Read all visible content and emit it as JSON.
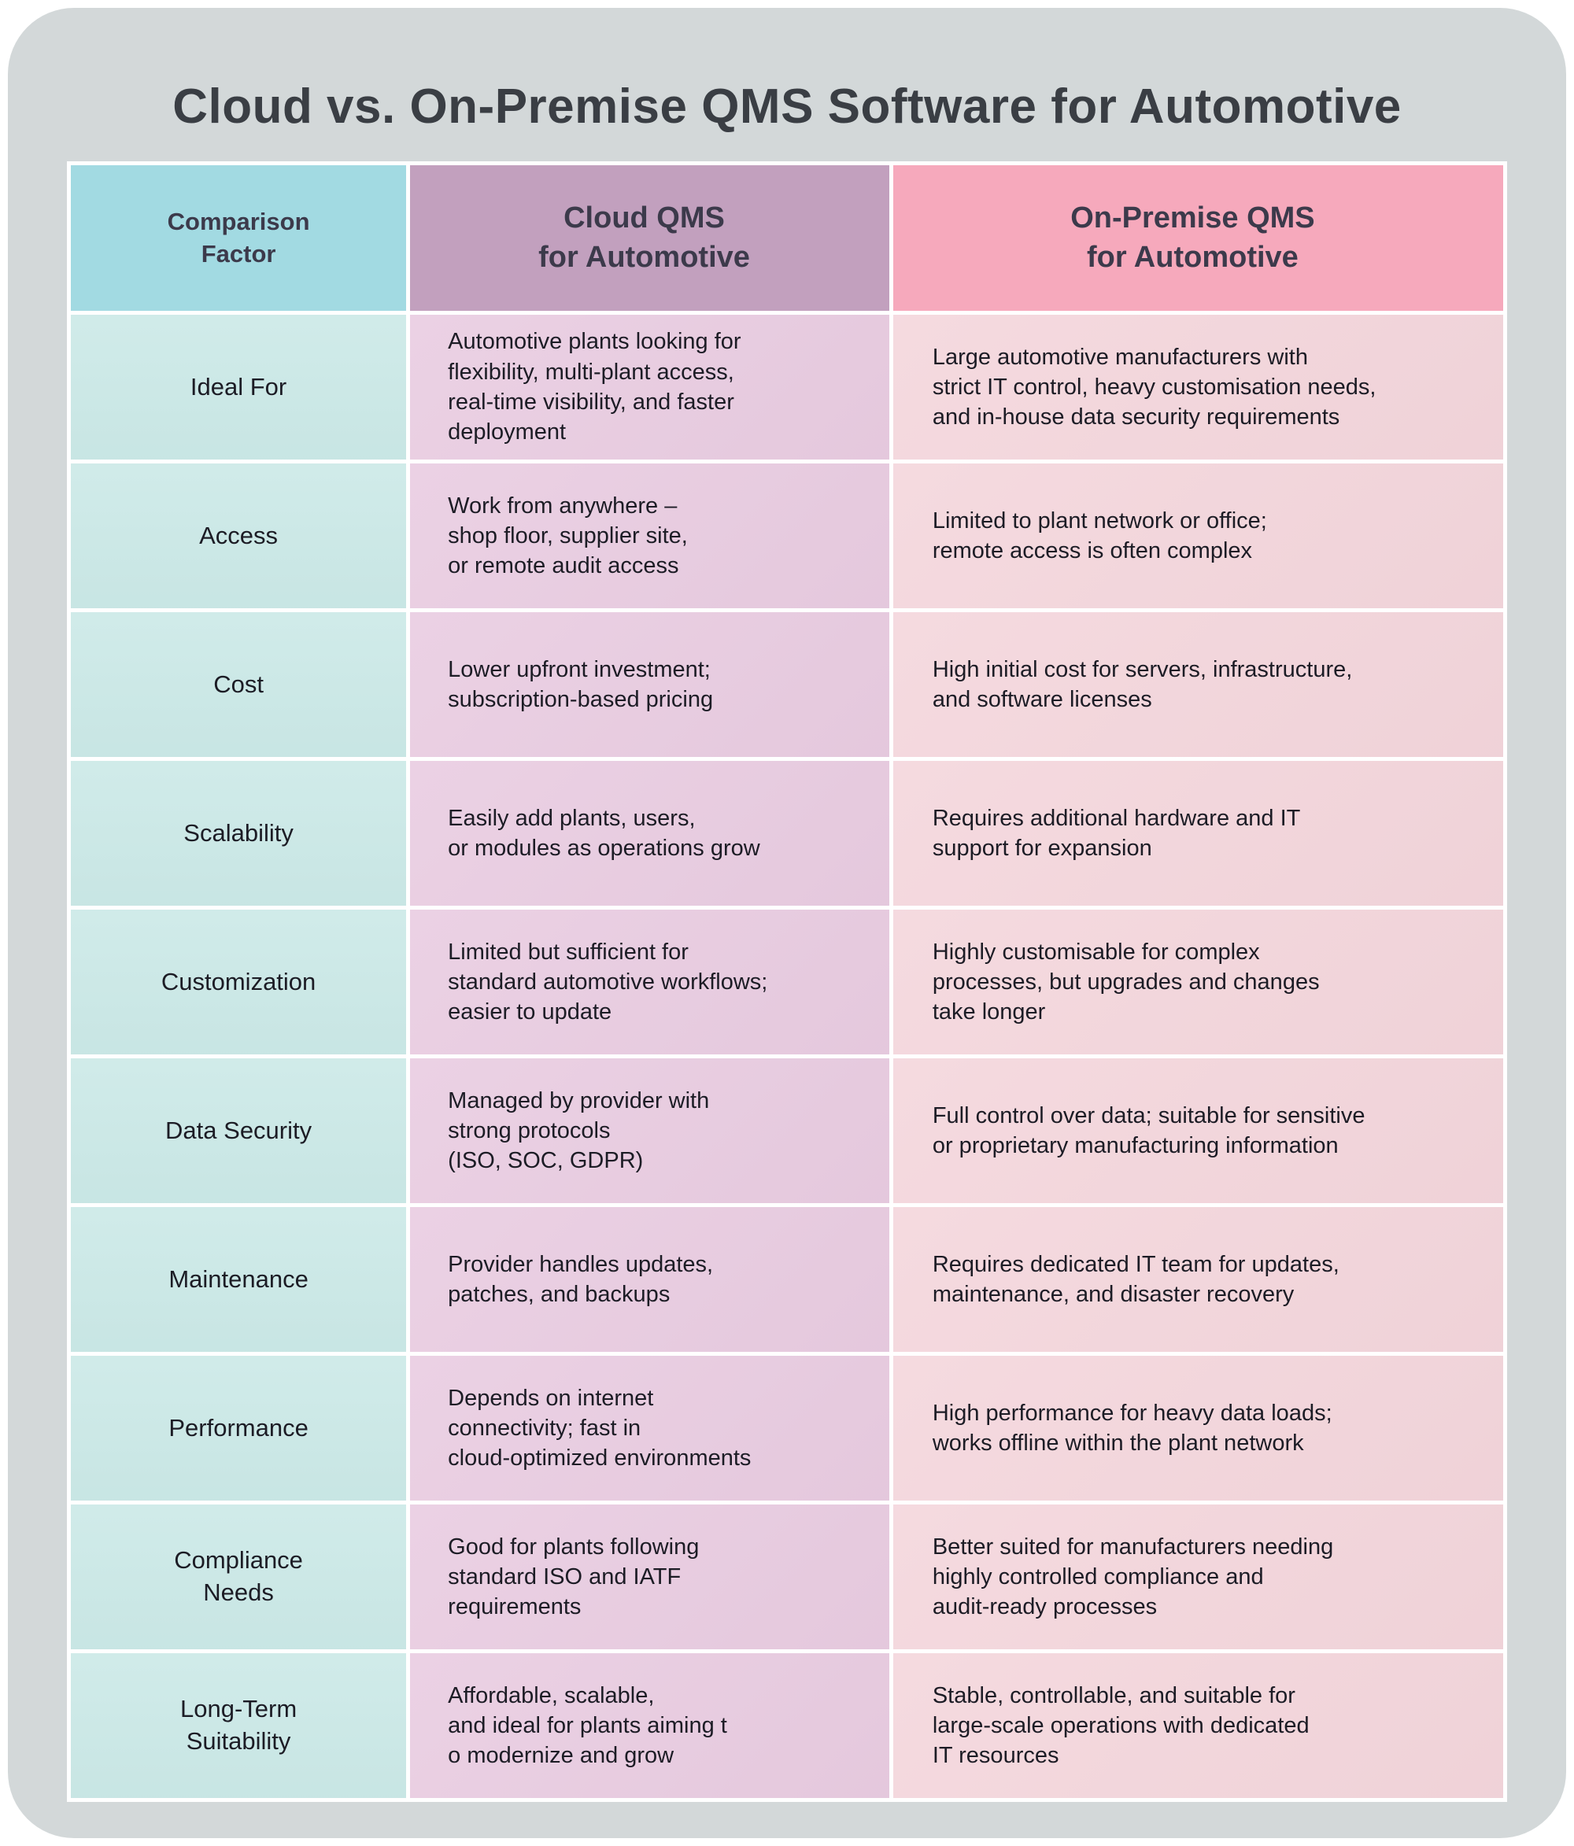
{
  "page": {
    "title": "Cloud vs. On-Premise QMS Software for Automotive"
  },
  "colors": {
    "page_bg": "#ffffff",
    "card_bg": "#d3d8d9",
    "divider": "#ffffff",
    "header_factor_bg": "#a2dae2",
    "header_cloud_bg": "#c2a0be",
    "header_onprem_bg": "#f6a9bc",
    "body_factor_bg": "#cbe9e7",
    "body_cloud_bg": "#e9cce1",
    "body_onprem_bg": "#f4d6dc",
    "title_text": "#3a3e44",
    "header_text": "#3c3a4b",
    "body_text": "#1c1c25"
  },
  "chart_data": {
    "type": "table",
    "title": "Cloud vs. On-Premise QMS Software for Automotive",
    "columns": [
      "Comparison\nFactor",
      "Cloud QMS\nfor Automotive",
      "On-Premise QMS\nfor Automotive"
    ],
    "rows": [
      {
        "factor": "Ideal For",
        "cloud": "Automotive plants looking for\nflexibility, multi-plant access,\nreal-time visibility, and faster\ndeployment",
        "onprem": "Large automotive manufacturers with\nstrict IT control, heavy customisation needs,\nand in-house data security requirements"
      },
      {
        "factor": "Access",
        "cloud": "Work from anywhere –\nshop floor, supplier site,\nor remote audit access",
        "onprem": "Limited to plant network or office;\nremote access is often complex"
      },
      {
        "factor": "Cost",
        "cloud": "Lower upfront investment;\nsubscription-based pricing",
        "onprem": "High initial cost for servers, infrastructure,\nand software licenses"
      },
      {
        "factor": "Scalability",
        "cloud": "Easily add plants, users,\nor modules as operations grow",
        "onprem": "Requires additional hardware and IT\nsupport for expansion"
      },
      {
        "factor": "Customization",
        "cloud": "Limited but sufficient for\nstandard automotive workflows;\neasier to update",
        "onprem": "Highly customisable for complex\nprocesses, but upgrades and changes\ntake longer"
      },
      {
        "factor": "Data Security",
        "cloud": "Managed by provider with\nstrong protocols\n(ISO, SOC, GDPR)",
        "onprem": "Full control over data; suitable for sensitive\nor proprietary manufacturing information"
      },
      {
        "factor": "Maintenance",
        "cloud": "Provider handles updates,\npatches, and backups",
        "onprem": "Requires dedicated IT team for updates,\nmaintenance, and disaster recovery"
      },
      {
        "factor": "Performance",
        "cloud": "Depends on internet\nconnectivity; fast in\ncloud-optimized environments",
        "onprem": "High performance for heavy data loads;\nworks offline within the plant network"
      },
      {
        "factor": "Compliance\nNeeds",
        "cloud": "Good for plants following\nstandard ISO and IATF\nrequirements",
        "onprem": "Better suited for manufacturers needing\nhighly controlled compliance and\naudit-ready processes"
      },
      {
        "factor": "Long-Term\nSuitability",
        "cloud": "Affordable, scalable,\nand ideal for plants aiming t\no modernize and grow",
        "onprem": "Stable, controllable, and suitable for\nlarge-scale operations with dedicated\nIT resources"
      }
    ]
  }
}
